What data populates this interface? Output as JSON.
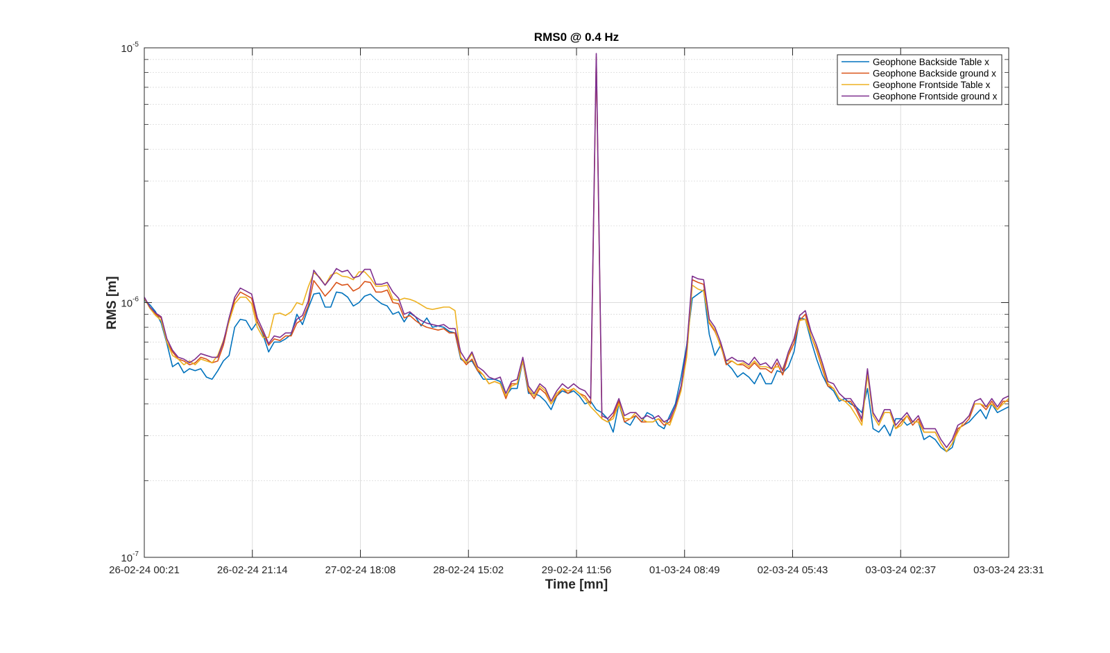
{
  "chart_data": {
    "type": "line",
    "title": "RMS0 @ 0.4 Hz",
    "xlabel": "Time [mn]",
    "ylabel": "RMS [m]",
    "y_scale": "log",
    "ylim": [
      1e-07,
      1e-05
    ],
    "y_tick_labels": [
      {
        "base": "10",
        "exp": "-7"
      },
      {
        "base": "10",
        "exp": "-6"
      },
      {
        "base": "10",
        "exp": "-5"
      }
    ],
    "x_tick_labels": [
      "26-02-24 00:21",
      "26-02-24 21:14",
      "27-02-24 18:08",
      "28-02-24 15:02",
      "29-02-24 11:56",
      "01-03-24 08:49",
      "02-03-24 05:43",
      "03-03-24 02:37",
      "03-03-24 23:31"
    ],
    "grid": true,
    "legend_position": "top-right",
    "x_start": "26-02-24 00:21",
    "x_end": "03-03-24 23:31",
    "series_colors": [
      "#0072BD",
      "#D95319",
      "#EDB120",
      "#7E2F8E"
    ],
    "series": [
      {
        "name": "Geophone Backside Table x",
        "color": "#0072BD",
        "values": [
          1.02e-06,
          9.8e-07,
          9.2e-07,
          8.3e-07,
          6.9e-07,
          5.6e-07,
          5.8e-07,
          5.3e-07,
          5.5e-07,
          5.4e-07,
          5.5e-07,
          5.1e-07,
          5e-07,
          5.4e-07,
          5.9e-07,
          6.2e-07,
          8e-07,
          8.6e-07,
          8.5e-07,
          7.8e-07,
          8.4e-07,
          7.5e-07,
          6.4e-07,
          7e-07,
          7e-07,
          7.2e-07,
          7.5e-07,
          9e-07,
          8.2e-07,
          9.5e-07,
          1.08e-06,
          1.09e-06,
          9.6e-07,
          9.6e-07,
          1.1e-06,
          1.09e-06,
          1.05e-06,
          9.7e-07,
          1e-06,
          1.06e-06,
          1.08e-06,
          1.03e-06,
          9.9e-07,
          9.7e-07,
          9e-07,
          9.2e-07,
          8.4e-07,
          9.1e-07,
          8.8e-07,
          8.1e-07,
          8.7e-07,
          8e-07,
          8.1e-07,
          8e-07,
          7.7e-07,
          7.6e-07,
          6e-07,
          5.8e-07,
          5.9e-07,
          5.4e-07,
          5e-07,
          5e-07,
          5e-07,
          4.9e-07,
          4.3e-07,
          4.6e-07,
          4.6e-07,
          5.9e-07,
          4.4e-07,
          4.4e-07,
          4.3e-07,
          4.1e-07,
          3.8e-07,
          4.3e-07,
          4.5e-07,
          4.4e-07,
          4.5e-07,
          4.3e-07,
          4e-07,
          4.1e-07,
          3.8e-07,
          3.7e-07,
          3.5e-07,
          3.1e-07,
          4e-07,
          3.4e-07,
          3.3e-07,
          3.6e-07,
          3.4e-07,
          3.7e-07,
          3.6e-07,
          3.3e-07,
          3.2e-07,
          3.6e-07,
          4e-07,
          5.1e-07,
          6.8e-07,
          1.04e-06,
          1.08e-06,
          1.12e-06,
          7.5e-07,
          6.2e-07,
          6.8e-07,
          5.8e-07,
          5.5e-07,
          5.1e-07,
          5.3e-07,
          5.1e-07,
          4.8e-07,
          5.3e-07,
          4.8e-07,
          4.8e-07,
          5.4e-07,
          5.3e-07,
          5.6e-07,
          6.4e-07,
          8.7e-07,
          8.6e-07,
          7.1e-07,
          6e-07,
          5.2e-07,
          4.7e-07,
          4.5e-07,
          4.1e-07,
          4.2e-07,
          4e-07,
          3.9e-07,
          3.7e-07,
          4.6e-07,
          3.2e-07,
          3.1e-07,
          3.3e-07,
          3e-07,
          3.5e-07,
          3.5e-07,
          3.3e-07,
          3.4e-07,
          3.4e-07,
          2.9e-07,
          3e-07,
          2.9e-07,
          2.7e-07,
          2.6e-07,
          2.7e-07,
          3.2e-07,
          3.3e-07,
          3.4e-07,
          3.6e-07,
          3.8e-07,
          3.5e-07,
          4e-07,
          3.7e-07,
          3.8e-07,
          3.9e-07
        ]
      },
      {
        "name": "Geophone Backside ground x",
        "color": "#D95319",
        "values": [
          1.04e-06,
          9.6e-07,
          9e-07,
          8.7e-07,
          7e-07,
          6.4e-07,
          6e-07,
          5.9e-07,
          5.7e-07,
          5.8e-07,
          6.1e-07,
          6e-07,
          5.8e-07,
          5.9e-07,
          6.8e-07,
          8.5e-07,
          1.02e-06,
          1.1e-06,
          1.07e-06,
          1.04e-06,
          8.4e-07,
          7.6e-07,
          6.8e-07,
          7.2e-07,
          7.1e-07,
          7.4e-07,
          7.4e-07,
          8.3e-07,
          8.6e-07,
          9.7e-07,
          1.22e-06,
          1.14e-06,
          1.06e-06,
          1.12e-06,
          1.2e-06,
          1.17e-06,
          1.18e-06,
          1.11e-06,
          1.14e-06,
          1.21e-06,
          1.2e-06,
          1.1e-06,
          1.1e-06,
          1.12e-06,
          1e-06,
          9.9e-07,
          8.7e-07,
          8.9e-07,
          8.5e-07,
          8.2e-07,
          8e-07,
          7.9e-07,
          7.8e-07,
          7.9e-07,
          7.6e-07,
          7.6e-07,
          6.1e-07,
          5.7e-07,
          6e-07,
          5.4e-07,
          5.2e-07,
          4.8e-07,
          4.9e-07,
          4.8e-07,
          4.2e-07,
          4.8e-07,
          4.8e-07,
          5.9e-07,
          4.5e-07,
          4.2e-07,
          4.6e-07,
          4.4e-07,
          4e-07,
          4.3e-07,
          4.6e-07,
          4.4e-07,
          4.6e-07,
          4.4e-07,
          4.3e-07,
          4e-07,
          9.2e-06,
          3.5e-07,
          3.4e-07,
          3.6e-07,
          4.1e-07,
          3.4e-07,
          3.5e-07,
          3.6e-07,
          3.4e-07,
          3.4e-07,
          3.4e-07,
          3.5e-07,
          3.3e-07,
          3.4e-07,
          3.8e-07,
          4.6e-07,
          6.5e-07,
          1.23e-06,
          1.2e-06,
          1.18e-06,
          8.3e-07,
          7.7e-07,
          6.8e-07,
          5.7e-07,
          5.9e-07,
          5.7e-07,
          5.7e-07,
          5.5e-07,
          5.8e-07,
          5.5e-07,
          5.5e-07,
          5.3e-07,
          5.8e-07,
          5.2e-07,
          6.2e-07,
          6.9e-07,
          8.5e-07,
          9e-07,
          7.4e-07,
          6.5e-07,
          5.5e-07,
          4.7e-07,
          4.6e-07,
          4.2e-07,
          4.1e-07,
          4.1e-07,
          3.8e-07,
          3.4e-07,
          5.3e-07,
          3.6e-07,
          3.3e-07,
          3.7e-07,
          3.7e-07,
          3.2e-07,
          3.4e-07,
          3.6e-07,
          3.3e-07,
          3.5e-07,
          3.1e-07,
          3.1e-07,
          3.1e-07,
          2.8e-07,
          2.6e-07,
          2.8e-07,
          3.2e-07,
          3.3e-07,
          3.5e-07,
          4e-07,
          4e-07,
          3.8e-07,
          4.1e-07,
          3.8e-07,
          4.1e-07,
          4.1e-07
        ]
      },
      {
        "name": "Geophone Frontside Table x",
        "color": "#EDB120",
        "values": [
          1.04e-06,
          9.5e-07,
          8.9e-07,
          8.5e-07,
          7e-07,
          6.2e-07,
          6e-07,
          5.7e-07,
          5.9e-07,
          5.7e-07,
          6e-07,
          5.9e-07,
          5.8e-07,
          6.2e-07,
          7.1e-07,
          8.4e-07,
          9.9e-07,
          1.05e-06,
          1.05e-06,
          9.9e-07,
          8e-07,
          7.3e-07,
          7.3e-07,
          9e-07,
          9.1e-07,
          8.9e-07,
          9.2e-07,
          1e-06,
          9.8e-07,
          1.15e-06,
          1.31e-06,
          1.26e-06,
          1.17e-06,
          1.28e-06,
          1.31e-06,
          1.27e-06,
          1.26e-06,
          1.23e-06,
          1.32e-06,
          1.32e-06,
          1.25e-06,
          1.16e-06,
          1.16e-06,
          1.17e-06,
          1.03e-06,
          1.02e-06,
          1.04e-06,
          1.03e-06,
          1.01e-06,
          9.8e-07,
          9.5e-07,
          9.4e-07,
          9.5e-07,
          9.6e-07,
          9.6e-07,
          9.3e-07,
          6.1e-07,
          5.8e-07,
          6.3e-07,
          5.5e-07,
          5.2e-07,
          4.8e-07,
          4.9e-07,
          4.8e-07,
          4.3e-07,
          4.7e-07,
          4.8e-07,
          5.9e-07,
          4.6e-07,
          4.3e-07,
          4.7e-07,
          4.5e-07,
          4e-07,
          4.4e-07,
          4.6e-07,
          4.5e-07,
          4.6e-07,
          4.4e-07,
          4.2e-07,
          3.9e-07,
          3.7e-07,
          3.5e-07,
          3.4e-07,
          3.5e-07,
          4e-07,
          3.5e-07,
          3.5e-07,
          3.7e-07,
          3.5e-07,
          3.4e-07,
          3.4e-07,
          3.5e-07,
          3.4e-07,
          3.3e-07,
          3.8e-07,
          4.5e-07,
          6.1e-07,
          1.17e-06,
          1.13e-06,
          1.11e-06,
          8.4e-07,
          7.8e-07,
          6.7e-07,
          5.9e-07,
          5.9e-07,
          5.7e-07,
          5.8e-07,
          5.6e-07,
          5.9e-07,
          5.6e-07,
          5.6e-07,
          5.5e-07,
          5.6e-07,
          5.5e-07,
          6.3e-07,
          7.2e-07,
          8.5e-07,
          8.6e-07,
          7.4e-07,
          6.6e-07,
          5.6e-07,
          4.8e-07,
          4.6e-07,
          4.2e-07,
          4.1e-07,
          3.9e-07,
          3.6e-07,
          3.3e-07,
          5.2e-07,
          3.6e-07,
          3.3e-07,
          3.7e-07,
          3.7e-07,
          3.2e-07,
          3.3e-07,
          3.6e-07,
          3.4e-07,
          3.4e-07,
          3.1e-07,
          3.1e-07,
          3.1e-07,
          2.8e-07,
          2.6e-07,
          2.8e-07,
          3.1e-07,
          3.4e-07,
          3.6e-07,
          4e-07,
          4e-07,
          3.9e-07,
          4e-07,
          3.8e-07,
          4e-07,
          4.2e-07
        ]
      },
      {
        "name": "Geophone Frontside ground x",
        "color": "#7E2F8E",
        "values": [
          1.05e-06,
          9.6e-07,
          9.1e-07,
          8.8e-07,
          7.2e-07,
          6.5e-07,
          6.1e-07,
          6e-07,
          5.8e-07,
          6e-07,
          6.3e-07,
          6.2e-07,
          6.1e-07,
          6.1e-07,
          7e-07,
          8.7e-07,
          1.05e-06,
          1.14e-06,
          1.11e-06,
          1.08e-06,
          8.7e-07,
          7.8e-07,
          6.9e-07,
          7.4e-07,
          7.3e-07,
          7.6e-07,
          7.6e-07,
          8.6e-07,
          8.9e-07,
          1.01e-06,
          1.34e-06,
          1.25e-06,
          1.17e-06,
          1.25e-06,
          1.36e-06,
          1.32e-06,
          1.34e-06,
          1.25e-06,
          1.27e-06,
          1.35e-06,
          1.35e-06,
          1.18e-06,
          1.18e-06,
          1.2e-06,
          1.1e-06,
          1.04e-06,
          9e-07,
          9.2e-07,
          8.8e-07,
          8.5e-07,
          8.3e-07,
          8.2e-07,
          8.1e-07,
          8.2e-07,
          7.9e-07,
          7.9e-07,
          6.4e-07,
          5.9e-07,
          6.4e-07,
          5.6e-07,
          5.4e-07,
          5.1e-07,
          5e-07,
          5.1e-07,
          4.4e-07,
          4.9e-07,
          5e-07,
          6.1e-07,
          4.7e-07,
          4.4e-07,
          4.8e-07,
          4.6e-07,
          4.1e-07,
          4.5e-07,
          4.8e-07,
          4.6e-07,
          4.8e-07,
          4.6e-07,
          4.5e-07,
          4.2e-07,
          9.5e-06,
          3.6e-07,
          3.5e-07,
          3.7e-07,
          4.2e-07,
          3.6e-07,
          3.7e-07,
          3.7e-07,
          3.5e-07,
          3.6e-07,
          3.5e-07,
          3.6e-07,
          3.4e-07,
          3.5e-07,
          3.9e-07,
          4.7e-07,
          6.6e-07,
          1.27e-06,
          1.24e-06,
          1.23e-06,
          8.6e-07,
          8e-07,
          7e-07,
          5.9e-07,
          6.1e-07,
          5.9e-07,
          5.9e-07,
          5.7e-07,
          6.1e-07,
          5.7e-07,
          5.8e-07,
          5.5e-07,
          6e-07,
          5.4e-07,
          6.4e-07,
          7.2e-07,
          8.9e-07,
          9.3e-07,
          7.7e-07,
          6.8e-07,
          5.8e-07,
          4.9e-07,
          4.8e-07,
          4.4e-07,
          4.2e-07,
          4.2e-07,
          3.9e-07,
          3.5e-07,
          5.5e-07,
          3.7e-07,
          3.4e-07,
          3.8e-07,
          3.8e-07,
          3.3e-07,
          3.5e-07,
          3.7e-07,
          3.4e-07,
          3.6e-07,
          3.2e-07,
          3.2e-07,
          3.2e-07,
          2.9e-07,
          2.7e-07,
          2.9e-07,
          3.3e-07,
          3.4e-07,
          3.6e-07,
          4.1e-07,
          4.2e-07,
          3.9e-07,
          4.2e-07,
          3.9e-07,
          4.2e-07,
          4.3e-07
        ]
      }
    ]
  }
}
